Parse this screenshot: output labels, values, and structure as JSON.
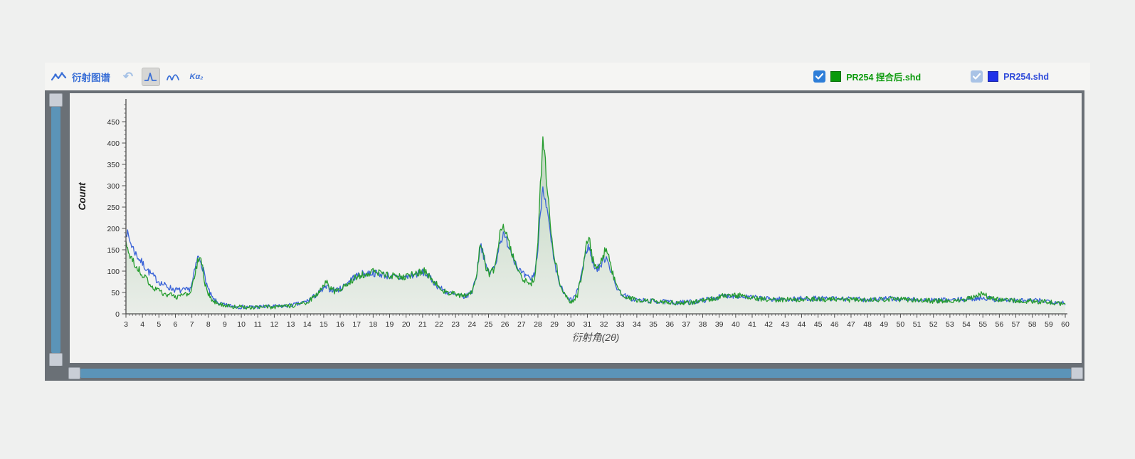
{
  "window": {
    "app_region": "diffraction-viewer"
  },
  "toolbar": {
    "title": "衍射图谱",
    "icons": {
      "chart_line": "chart-line-icon",
      "undo": "↶",
      "single_peak": "single-peak-icon",
      "double_peak": "double-peak-icon"
    },
    "ka2_label": "Kα₂",
    "accent_color": "#3a6fd6"
  },
  "legend": [
    {
      "label": "PR254 捏合后.shd",
      "label_color": "#0a9a0b",
      "swatch_color": "#0a9a0b",
      "checkbox_color": "#2e7ed8",
      "checked": true
    },
    {
      "label": "PR254.shd",
      "label_color": "#2f4bda",
      "swatch_color": "#2031e8",
      "checkbox_color": "#a9c3e6",
      "checked": true
    }
  ],
  "scrollbars": {
    "vertical": {
      "color": "#5b94b8",
      "frame_color": "#6a7076",
      "handles": 2
    },
    "horizontal": {
      "color": "#5b94b8",
      "frame_color": "#6a7076",
      "handles": 2
    }
  },
  "chart_data": {
    "type": "line",
    "title": "",
    "xlabel": "衍射角(2θ)",
    "ylabel": "Count",
    "xlim": [
      3,
      60
    ],
    "ylim": [
      0,
      503
    ],
    "grid": false,
    "legend_position": "toolbar-top-right",
    "x_ticks": {
      "start": 3,
      "end": 60,
      "step": 1,
      "minor_step": 0.2
    },
    "y_ticks": {
      "start": 0,
      "end": 450,
      "step": 50,
      "minor_step": 10
    },
    "noise": {
      "base": 2,
      "sqrt_coeff": 0.7,
      "sample_step": 0.05
    },
    "series": [
      {
        "name": "PR254 捏合后.shd",
        "color": "#259c2e",
        "fill": true,
        "fill_color_top": "rgba(70,150,70,0.30)",
        "fill_color_bottom": "rgba(70,150,70,0.05)",
        "seed": 20,
        "envelope": [
          [
            3,
            165
          ],
          [
            3.3,
            130
          ],
          [
            3.6,
            112
          ],
          [
            4,
            92
          ],
          [
            4.4,
            72
          ],
          [
            4.8,
            58
          ],
          [
            5.2,
            50
          ],
          [
            5.6,
            45
          ],
          [
            6,
            40
          ],
          [
            6.4,
            42
          ],
          [
            6.8,
            48
          ],
          [
            7,
            58
          ],
          [
            7.2,
            95
          ],
          [
            7.45,
            138
          ],
          [
            7.6,
            118
          ],
          [
            7.8,
            70
          ],
          [
            8,
            45
          ],
          [
            8.3,
            30
          ],
          [
            8.7,
            24
          ],
          [
            9,
            20
          ],
          [
            9.5,
            17
          ],
          [
            10,
            16
          ],
          [
            10.5,
            15
          ],
          [
            11,
            15
          ],
          [
            11.5,
            16
          ],
          [
            12,
            16
          ],
          [
            12.5,
            17
          ],
          [
            13,
            18
          ],
          [
            13.5,
            21
          ],
          [
            14,
            28
          ],
          [
            14.4,
            38
          ],
          [
            14.8,
            55
          ],
          [
            15.15,
            78
          ],
          [
            15.4,
            60
          ],
          [
            15.7,
            52
          ],
          [
            16,
            55
          ],
          [
            16.4,
            68
          ],
          [
            16.8,
            82
          ],
          [
            17.2,
            90
          ],
          [
            17.6,
            95
          ],
          [
            18,
            98
          ],
          [
            18.4,
            96
          ],
          [
            18.8,
            92
          ],
          [
            19.2,
            88
          ],
          [
            19.6,
            87
          ],
          [
            20,
            88
          ],
          [
            20.4,
            92
          ],
          [
            20.8,
            98
          ],
          [
            21.1,
            100
          ],
          [
            21.4,
            88
          ],
          [
            21.7,
            75
          ],
          [
            22,
            62
          ],
          [
            22.4,
            52
          ],
          [
            22.8,
            47
          ],
          [
            23.2,
            43
          ],
          [
            23.6,
            42
          ],
          [
            24,
            52
          ],
          [
            24.3,
            95
          ],
          [
            24.5,
            168
          ],
          [
            24.65,
            155
          ],
          [
            24.85,
            110
          ],
          [
            25.1,
            92
          ],
          [
            25.4,
            108
          ],
          [
            25.7,
            185
          ],
          [
            25.9,
            200
          ],
          [
            26.1,
            185
          ],
          [
            26.4,
            148
          ],
          [
            26.7,
            108
          ],
          [
            27,
            82
          ],
          [
            27.3,
            74
          ],
          [
            27.6,
            72
          ],
          [
            27.8,
            88
          ],
          [
            28,
            160
          ],
          [
            28.15,
            300
          ],
          [
            28.3,
            405
          ],
          [
            28.45,
            350
          ],
          [
            28.6,
            280
          ],
          [
            28.8,
            195
          ],
          [
            29,
            135
          ],
          [
            29.3,
            78
          ],
          [
            29.6,
            46
          ],
          [
            29.85,
            32
          ],
          [
            30.1,
            28
          ],
          [
            30.4,
            45
          ],
          [
            30.7,
            100
          ],
          [
            30.95,
            170
          ],
          [
            31.1,
            182
          ],
          [
            31.3,
            130
          ],
          [
            31.55,
            108
          ],
          [
            31.8,
            118
          ],
          [
            32.05,
            148
          ],
          [
            32.2,
            152
          ],
          [
            32.45,
            105
          ],
          [
            32.7,
            72
          ],
          [
            33,
            52
          ],
          [
            33.4,
            40
          ],
          [
            33.8,
            34
          ],
          [
            34.3,
            31
          ],
          [
            35,
            29
          ],
          [
            35.7,
            27
          ],
          [
            36.4,
            25
          ],
          [
            37,
            26
          ],
          [
            37.6,
            28
          ],
          [
            38.2,
            32
          ],
          [
            38.8,
            38
          ],
          [
            39.4,
            43
          ],
          [
            40,
            44
          ],
          [
            40.5,
            41
          ],
          [
            41,
            38
          ],
          [
            41.6,
            35
          ],
          [
            42.3,
            33
          ],
          [
            43,
            33
          ],
          [
            43.8,
            34
          ],
          [
            44.6,
            35
          ],
          [
            45.4,
            34
          ],
          [
            46.2,
            34
          ],
          [
            47,
            33
          ],
          [
            48,
            33
          ],
          [
            49,
            34
          ],
          [
            50,
            34
          ],
          [
            51,
            32
          ],
          [
            52,
            30
          ],
          [
            53,
            31
          ],
          [
            54,
            34
          ],
          [
            54.6,
            44
          ],
          [
            55,
            47
          ],
          [
            55.4,
            40
          ],
          [
            56,
            33
          ],
          [
            57,
            30
          ],
          [
            58,
            30
          ],
          [
            59,
            28
          ],
          [
            60,
            23
          ]
        ]
      },
      {
        "name": "PR254.shd",
        "color": "#3a63d8",
        "fill": false,
        "seed": 7,
        "envelope": [
          [
            3,
            196
          ],
          [
            3.3,
            165
          ],
          [
            3.6,
            140
          ],
          [
            4,
            118
          ],
          [
            4.4,
            98
          ],
          [
            4.8,
            82
          ],
          [
            5.2,
            70
          ],
          [
            5.6,
            62
          ],
          [
            6,
            56
          ],
          [
            6.4,
            54
          ],
          [
            6.8,
            56
          ],
          [
            7,
            68
          ],
          [
            7.2,
            105
          ],
          [
            7.35,
            132
          ],
          [
            7.55,
            125
          ],
          [
            7.8,
            85
          ],
          [
            8,
            55
          ],
          [
            8.3,
            33
          ],
          [
            8.7,
            24
          ],
          [
            9,
            20
          ],
          [
            9.5,
            18
          ],
          [
            10,
            16
          ],
          [
            10.5,
            16
          ],
          [
            11,
            16
          ],
          [
            11.5,
            17
          ],
          [
            12,
            17
          ],
          [
            12.5,
            18
          ],
          [
            13,
            20
          ],
          [
            13.5,
            23
          ],
          [
            14,
            30
          ],
          [
            14.4,
            40
          ],
          [
            14.8,
            52
          ],
          [
            15.15,
            62
          ],
          [
            15.4,
            58
          ],
          [
            15.7,
            56
          ],
          [
            16,
            58
          ],
          [
            16.4,
            72
          ],
          [
            16.8,
            85
          ],
          [
            17.2,
            92
          ],
          [
            17.6,
            95
          ],
          [
            18,
            96
          ],
          [
            18.4,
            93
          ],
          [
            18.8,
            90
          ],
          [
            19.2,
            86
          ],
          [
            19.6,
            84
          ],
          [
            20,
            86
          ],
          [
            20.4,
            90
          ],
          [
            20.8,
            95
          ],
          [
            21.1,
            97
          ],
          [
            21.4,
            86
          ],
          [
            21.7,
            74
          ],
          [
            22,
            62
          ],
          [
            22.4,
            52
          ],
          [
            22.8,
            46
          ],
          [
            23.2,
            42
          ],
          [
            23.6,
            40
          ],
          [
            24,
            52
          ],
          [
            24.3,
            95
          ],
          [
            24.5,
            165
          ],
          [
            24.65,
            148
          ],
          [
            24.85,
            108
          ],
          [
            25.1,
            95
          ],
          [
            25.4,
            112
          ],
          [
            25.7,
            172
          ],
          [
            25.9,
            182
          ],
          [
            26.1,
            172
          ],
          [
            26.4,
            145
          ],
          [
            26.7,
            115
          ],
          [
            27,
            95
          ],
          [
            27.3,
            85
          ],
          [
            27.6,
            82
          ],
          [
            27.8,
            95
          ],
          [
            28,
            150
          ],
          [
            28.15,
            240
          ],
          [
            28.3,
            298
          ],
          [
            28.45,
            272
          ],
          [
            28.6,
            230
          ],
          [
            28.8,
            170
          ],
          [
            29,
            115
          ],
          [
            29.3,
            72
          ],
          [
            29.6,
            45
          ],
          [
            29.85,
            34
          ],
          [
            30.1,
            32
          ],
          [
            30.4,
            52
          ],
          [
            30.7,
            105
          ],
          [
            30.95,
            150
          ],
          [
            31.1,
            158
          ],
          [
            31.3,
            122
          ],
          [
            31.55,
            105
          ],
          [
            31.8,
            112
          ],
          [
            32.05,
            130
          ],
          [
            32.2,
            133
          ],
          [
            32.45,
            98
          ],
          [
            32.7,
            68
          ],
          [
            33,
            50
          ],
          [
            33.4,
            39
          ],
          [
            33.8,
            34
          ],
          [
            34.3,
            31
          ],
          [
            35,
            30
          ],
          [
            35.7,
            28
          ],
          [
            36.4,
            26
          ],
          [
            37,
            27
          ],
          [
            37.6,
            29
          ],
          [
            38.2,
            33
          ],
          [
            38.8,
            38
          ],
          [
            39.4,
            42
          ],
          [
            40,
            43
          ],
          [
            40.5,
            40
          ],
          [
            41,
            38
          ],
          [
            41.6,
            36
          ],
          [
            42.3,
            34
          ],
          [
            43,
            34
          ],
          [
            43.8,
            35
          ],
          [
            44.6,
            36
          ],
          [
            45.4,
            35
          ],
          [
            46.2,
            35
          ],
          [
            47,
            34
          ],
          [
            48,
            34
          ],
          [
            49,
            35
          ],
          [
            50,
            35
          ],
          [
            51,
            33
          ],
          [
            52,
            31
          ],
          [
            53,
            32
          ],
          [
            54,
            34
          ],
          [
            55,
            38
          ],
          [
            55.4,
            36
          ],
          [
            56,
            33
          ],
          [
            57,
            31
          ],
          [
            58,
            31
          ],
          [
            59,
            30
          ],
          [
            60,
            26
          ]
        ]
      }
    ]
  }
}
